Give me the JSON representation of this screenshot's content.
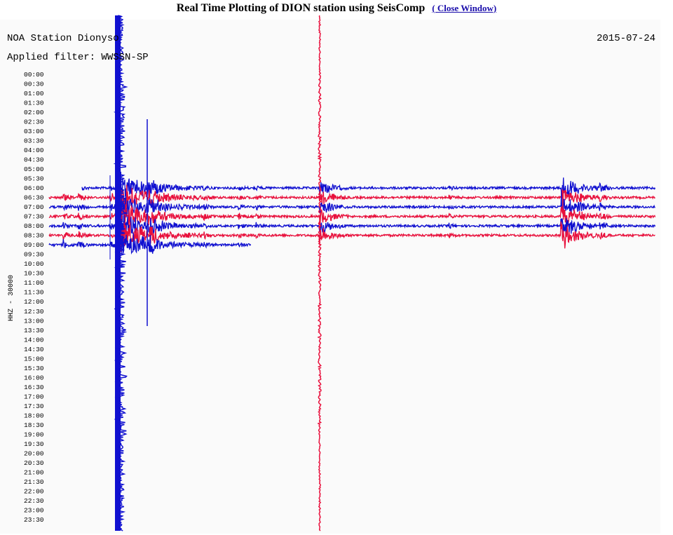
{
  "header": {
    "title": "Real Time Plotting of DION station using SeisComp",
    "link": "( Close Window)"
  },
  "plot": {
    "station": "NOA Station Dionyso",
    "date": "2015-07-24",
    "filter": "Applied filter: WWSSN-SP",
    "channel": "HHZ - 30000",
    "times": [
      "00:00",
      "00:30",
      "01:00",
      "01:30",
      "02:00",
      "02:30",
      "03:00",
      "03:30",
      "04:00",
      "04:30",
      "05:00",
      "05:30",
      "06:00",
      "06:30",
      "07:00",
      "07:30",
      "08:00",
      "08:30",
      "09:00",
      "09:30",
      "10:00",
      "10:30",
      "11:00",
      "11:30",
      "12:00",
      "12:30",
      "13:00",
      "13:30",
      "14:00",
      "14:30",
      "15:00",
      "15:30",
      "16:00",
      "16:30",
      "17:00",
      "17:30",
      "18:00",
      "18:30",
      "19:00",
      "19:30",
      "20:00",
      "20:30",
      "21:00",
      "21:30",
      "22:00",
      "22:30",
      "23:00",
      "23:30"
    ]
  }
}
